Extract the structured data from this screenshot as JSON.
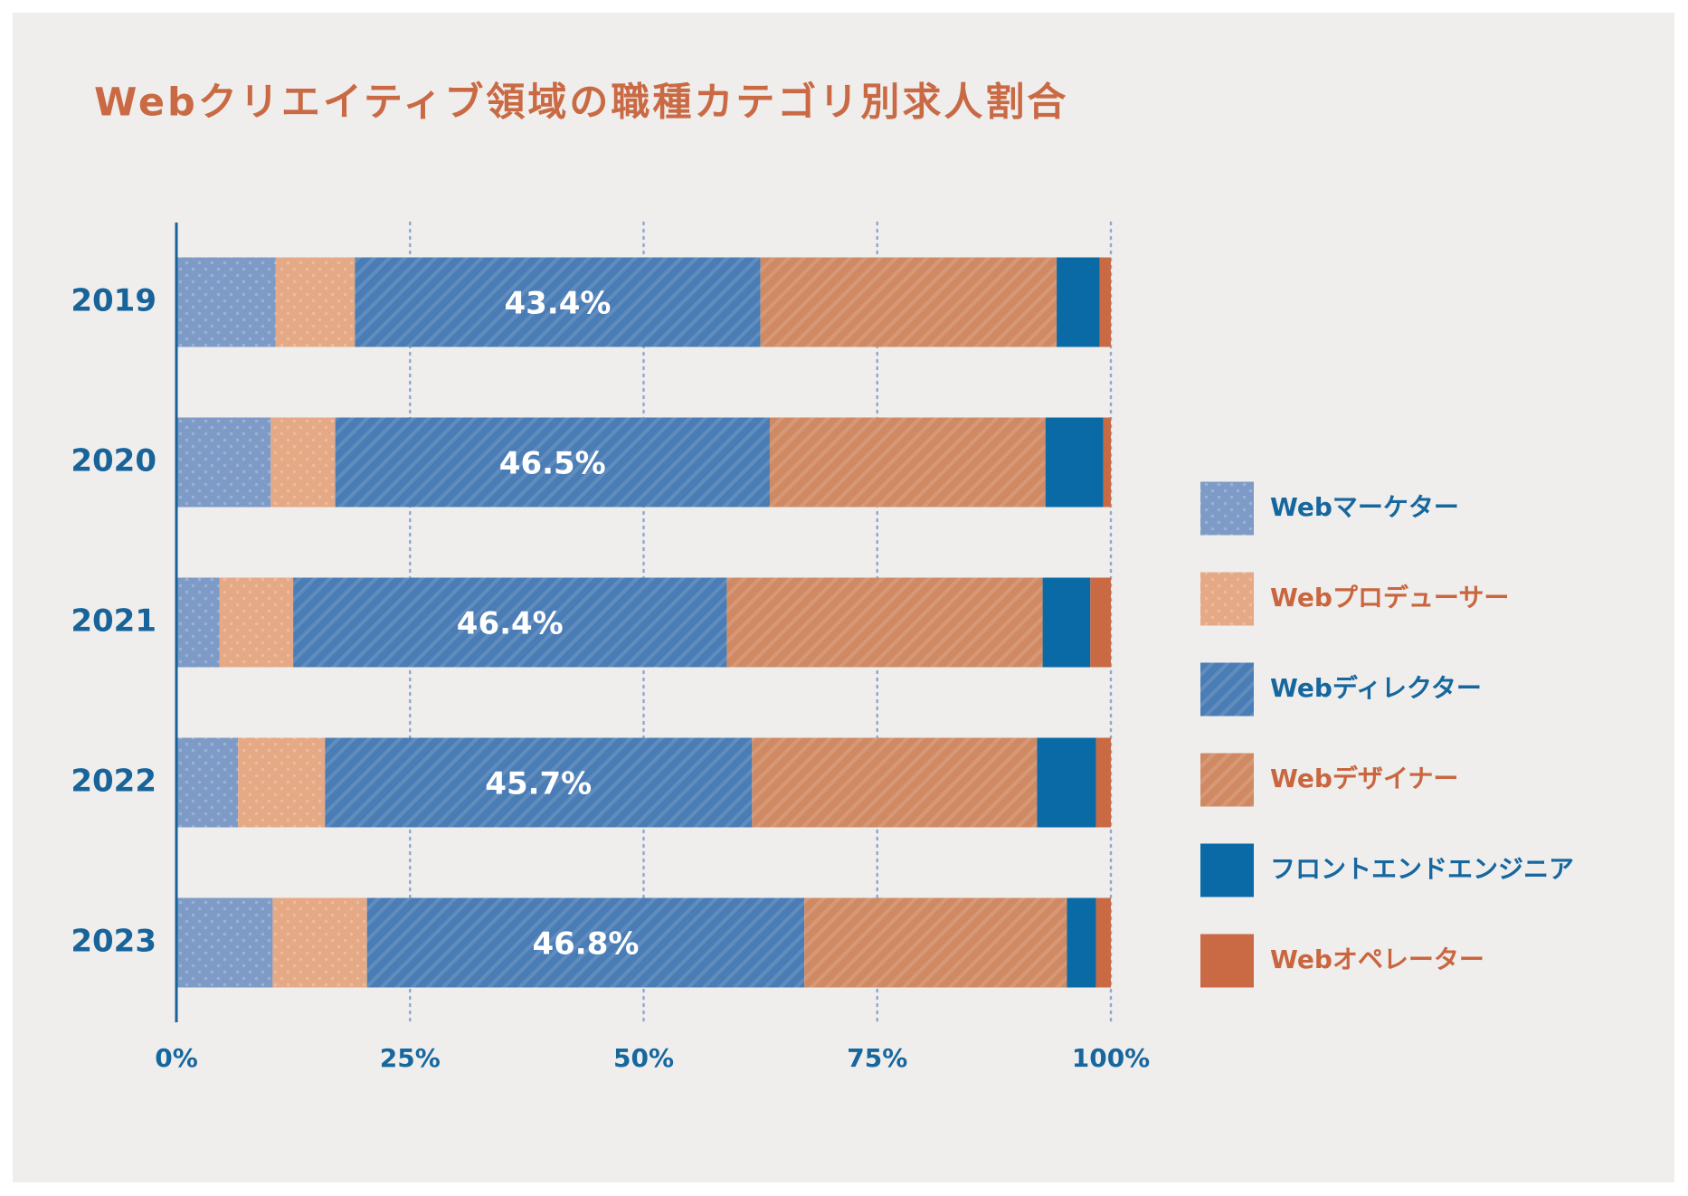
{
  "chart_data": {
    "type": "stacked-bar-horizontal",
    "title": "Webクリエイティブ領域の職種カテゴリ別求人割合",
    "categories": [
      "2019",
      "2020",
      "2021",
      "2022",
      "2023"
    ],
    "series": [
      {
        "name": "Webマーケター",
        "color": "#7d9bc6",
        "pattern": "dots",
        "values": [
          10.6,
          10.1,
          4.6,
          6.6,
          10.3
        ]
      },
      {
        "name": "Webプロデューサー",
        "color": "#e5a985",
        "pattern": "dots",
        "values": [
          8.5,
          6.9,
          7.9,
          9.3,
          10.1
        ]
      },
      {
        "name": "Webディレクター",
        "color": "#4a7db5",
        "pattern": "stripes",
        "values": [
          43.4,
          46.5,
          46.4,
          45.7,
          46.8
        ],
        "value_labels": [
          "43.4%",
          "46.5%",
          "46.4%",
          "45.7%",
          "46.8%"
        ]
      },
      {
        "name": "Webデザイナー",
        "color": "#d08a63",
        "pattern": "stripes",
        "values": [
          31.7,
          29.5,
          33.8,
          30.5,
          28.1
        ]
      },
      {
        "name": "フロントエンドエンジニア",
        "color": "#0a6aa6",
        "pattern": "solid",
        "values": [
          4.6,
          6.2,
          5.1,
          6.3,
          3.1
        ]
      },
      {
        "name": "Webオペレーター",
        "color": "#c96a45",
        "pattern": "solid",
        "values": [
          1.2,
          0.8,
          2.2,
          1.6,
          1.6
        ]
      }
    ],
    "xlim": [
      0,
      100
    ],
    "xticks": [
      {
        "value": 0,
        "label": "0%"
      },
      {
        "value": 25,
        "label": "25%"
      },
      {
        "value": 50,
        "label": "50%"
      },
      {
        "value": 75,
        "label": "75%"
      },
      {
        "value": 100,
        "label": "100%"
      }
    ],
    "grid": true,
    "legend": "right"
  }
}
